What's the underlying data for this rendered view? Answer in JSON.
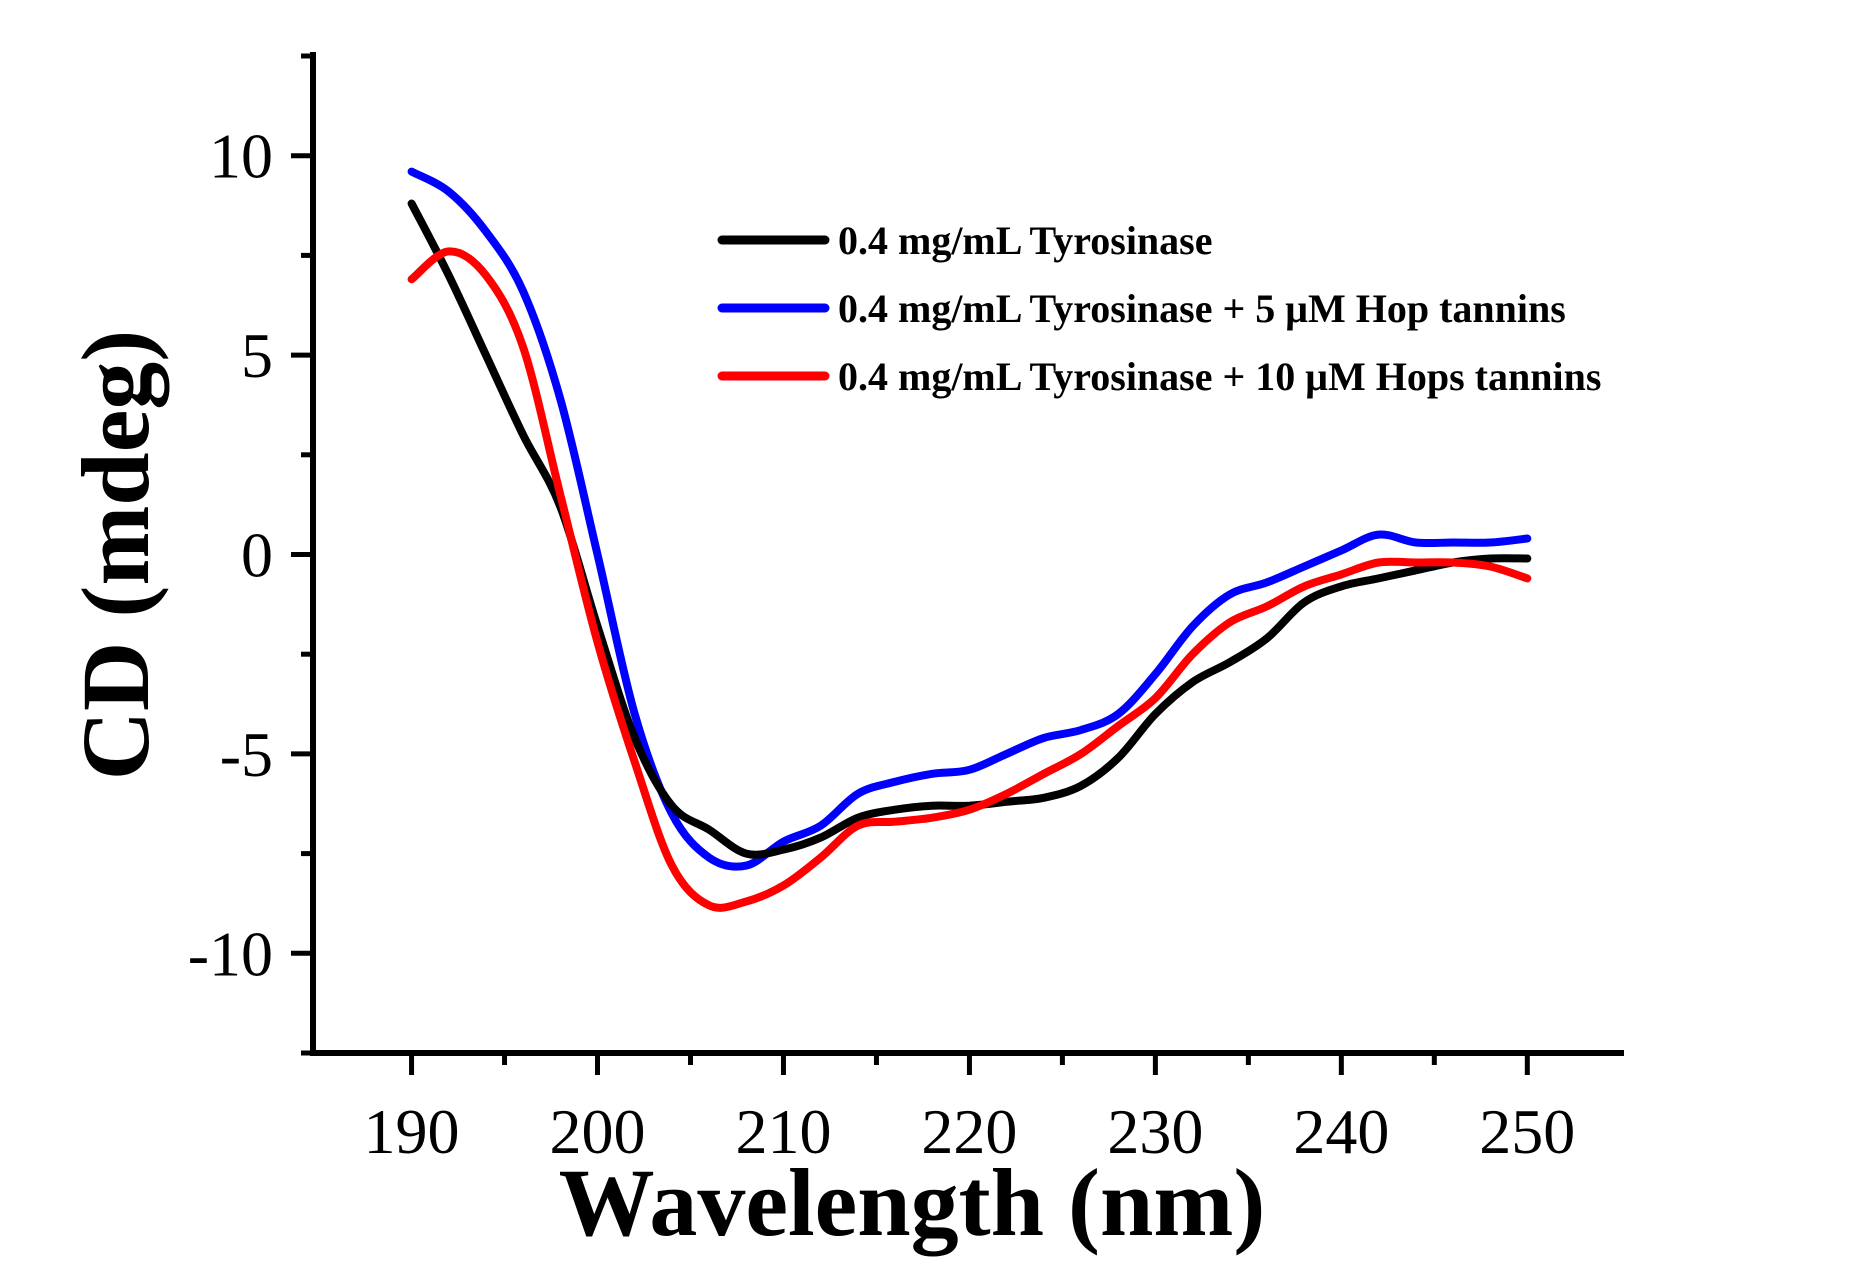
{
  "chart_data": {
    "type": "line",
    "title": "",
    "xlabel": "Wavelength (nm)",
    "ylabel": "CD (mdeg)",
    "xlim": [
      184.7,
      255.2
    ],
    "ylim": [
      -12.5,
      12.6
    ],
    "xticks": [
      190,
      200,
      210,
      220,
      230,
      240,
      250
    ],
    "xtick_labels": [
      "190",
      "200",
      "210",
      "220",
      "230",
      "240",
      "250"
    ],
    "yticks": [
      -10,
      -5,
      0,
      5,
      10
    ],
    "ytick_labels": [
      "-10",
      "-5",
      "0",
      "5",
      "10"
    ],
    "y_minor_ticks": [
      -12.5,
      -7.5,
      -2.5,
      2.5,
      7.5,
      12.5
    ],
    "grid": false,
    "legend_position": "top-right",
    "series": [
      {
        "name": "0.4 mg/mL Tyrosinase",
        "color": "#000000",
        "x": [
          190,
          192,
          194,
          196,
          198,
          200,
          202,
          204,
          206,
          208,
          210,
          212,
          214,
          216,
          218,
          220,
          222,
          224,
          226,
          228,
          230,
          232,
          234,
          236,
          238,
          240,
          242,
          244,
          246,
          248,
          250
        ],
        "y": [
          8.8,
          7.0,
          5.0,
          3.0,
          1.2,
          -1.8,
          -4.6,
          -6.3,
          -6.9,
          -7.5,
          -7.4,
          -7.1,
          -6.6,
          -6.4,
          -6.3,
          -6.3,
          -6.2,
          -6.1,
          -5.8,
          -5.1,
          -4.0,
          -3.2,
          -2.7,
          -2.1,
          -1.2,
          -0.8,
          -0.6,
          -0.4,
          -0.2,
          -0.1,
          -0.1
        ]
      },
      {
        "name": "0.4 mg/mL Tyrosinase + 5 μM Hop tannins",
        "color": "#0000ff",
        "x": [
          190,
          192,
          194,
          196,
          198,
          200,
          202,
          204,
          206,
          208,
          210,
          212,
          214,
          216,
          218,
          220,
          222,
          224,
          226,
          228,
          230,
          232,
          234,
          236,
          238,
          240,
          242,
          244,
          246,
          248,
          250
        ],
        "y": [
          9.6,
          9.1,
          8.1,
          6.6,
          3.9,
          0.0,
          -4.0,
          -6.5,
          -7.6,
          -7.8,
          -7.2,
          -6.8,
          -6.0,
          -5.7,
          -5.5,
          -5.4,
          -5.0,
          -4.6,
          -4.4,
          -4.0,
          -3.0,
          -1.8,
          -1.0,
          -0.7,
          -0.3,
          0.1,
          0.5,
          0.3,
          0.3,
          0.3,
          0.4
        ]
      },
      {
        "name": "0.4 mg/mL Tyrosinase + 10 μM Hops tannins",
        "color": "#ff0000",
        "x": [
          190,
          192,
          194,
          196,
          198,
          200,
          202,
          204,
          206,
          208,
          210,
          212,
          214,
          216,
          218,
          220,
          222,
          224,
          226,
          228,
          230,
          232,
          234,
          236,
          238,
          240,
          242,
          244,
          246,
          248,
          250
        ],
        "y": [
          6.9,
          7.6,
          7.0,
          5.2,
          1.5,
          -2.2,
          -5.2,
          -7.8,
          -8.8,
          -8.7,
          -8.3,
          -7.6,
          -6.8,
          -6.7,
          -6.6,
          -6.4,
          -6.0,
          -5.5,
          -5.0,
          -4.3,
          -3.6,
          -2.5,
          -1.7,
          -1.3,
          -0.8,
          -0.5,
          -0.2,
          -0.2,
          -0.2,
          -0.3,
          -0.6
        ]
      }
    ]
  }
}
